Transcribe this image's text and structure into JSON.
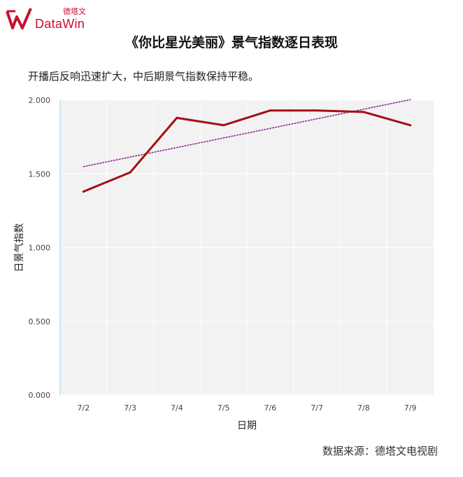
{
  "header": {
    "logo_brand": "DataWin",
    "logo_cn": "德塔文",
    "title": "《你比星光美丽》景气指数逐日表现",
    "subtitle": "开播后反响迅速扩大，中后期景气指数保持平稳。"
  },
  "footer": {
    "source": "数据来源：德塔文电视剧"
  },
  "colors": {
    "line": "#a50f15",
    "trend": "#8a2a8a",
    "plot_bg": "#f2f2f2",
    "brand": "#c8102e"
  },
  "chart_data": {
    "type": "line",
    "categories": [
      "7/2",
      "7/3",
      "7/4",
      "7/5",
      "7/6",
      "7/7",
      "7/8",
      "7/9"
    ],
    "series": [
      {
        "values": [
          1.38,
          1.51,
          1.88,
          1.83,
          1.93,
          1.93,
          1.92,
          1.83
        ]
      }
    ],
    "trendline": {
      "type": "linear",
      "style": "dotted"
    },
    "xlabel": "日期",
    "ylabel": "日景气指数",
    "ylim": [
      0,
      2
    ],
    "yticks": [
      "0.000",
      "0.500",
      "1.000",
      "1.500",
      "2.000"
    ],
    "grid": true
  }
}
